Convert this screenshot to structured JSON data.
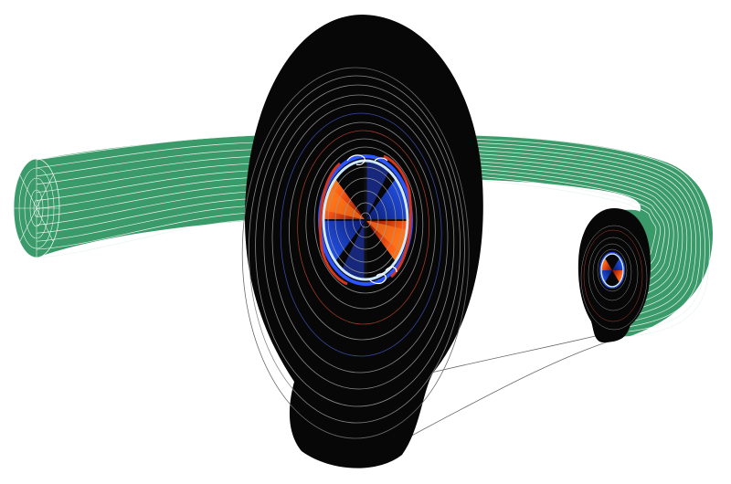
{
  "figure": {
    "description_visible_text": "",
    "colors": {
      "background": "#ffffff",
      "torus_fill": "#3b9a69",
      "torus_mesh": "#e9f4ee",
      "cross_section_bg": "#070707",
      "flux_surface": "#8a8a8a",
      "mode_red": "#d4361c",
      "mode_orange": "#ff8a1c",
      "mode_blue": "#1f4ad8",
      "mode_light": "#cfe9ff",
      "connector_line": "#6b6b6b"
    },
    "elements": {
      "torus": "toroidal-plasma-volume",
      "large_section": "poloidal-cross-section-zoomed",
      "small_section": "poloidal-cross-section",
      "connector": "zoom-connector-lines"
    }
  }
}
